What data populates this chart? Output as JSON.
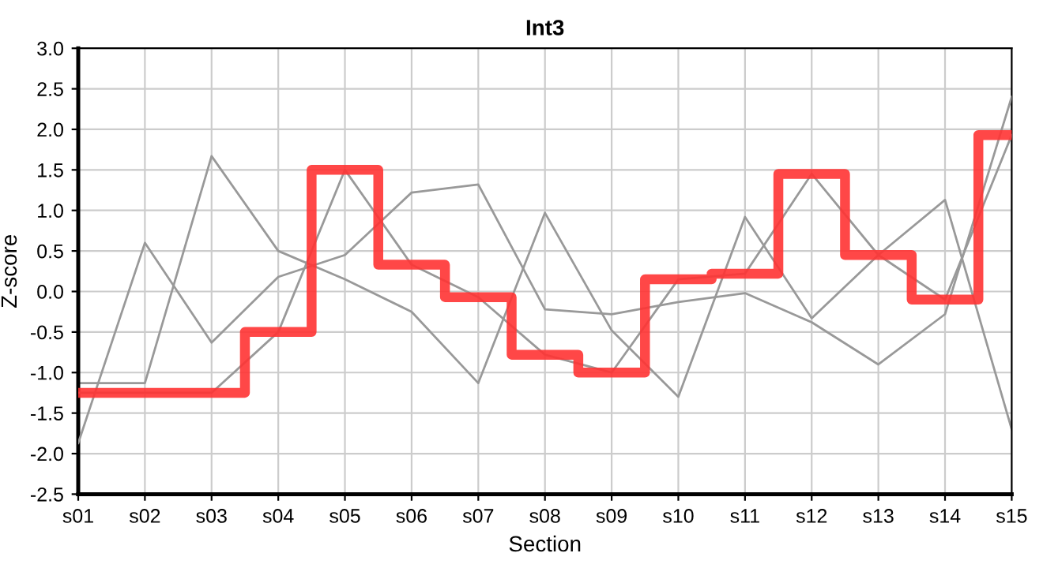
{
  "chart_data": {
    "type": "line",
    "title": "Int3",
    "xlabel": "Section",
    "ylabel": "Z-score",
    "categories": [
      "s01",
      "s02",
      "s03",
      "s04",
      "s05",
      "s06",
      "s07",
      "s08",
      "s09",
      "s10",
      "s11",
      "s12",
      "s13",
      "s14",
      "s15"
    ],
    "series": [
      {
        "color": "#999999",
        "values": [
          -1.13,
          -1.13,
          1.67,
          0.5,
          0.15,
          -0.25,
          -1.13,
          0.97,
          -0.48,
          -1.3,
          0.92,
          -0.33,
          0.45,
          1.13,
          -1.7
        ]
      },
      {
        "color": "#999999",
        "values": [
          -1.87,
          0.6,
          -0.63,
          0.18,
          0.45,
          1.22,
          1.32,
          -0.22,
          -0.28,
          -0.13,
          -0.02,
          -0.38,
          -0.9,
          -0.28,
          2.4
        ]
      },
      {
        "color": "#999999",
        "values": [
          -1.25,
          -1.25,
          -1.25,
          -0.5,
          1.5,
          0.33,
          -0.07,
          -0.78,
          -1.0,
          0.15,
          0.22,
          1.45,
          0.45,
          -0.1,
          1.93
        ]
      },
      {
        "type": "step",
        "color": "#ff3333",
        "values": [
          -1.25,
          -1.25,
          -1.25,
          -0.5,
          1.5,
          0.33,
          -0.07,
          -0.78,
          -1.0,
          0.15,
          0.22,
          1.45,
          0.45,
          -0.1,
          1.93
        ]
      }
    ],
    "ylim": [
      -2.5,
      3.0
    ],
    "yticks": [
      -2.5,
      {
        "value": -2,
        "label": "-2.0"
      },
      -1.5,
      {
        "value": -1,
        "label": "-1.0"
      },
      -0.5,
      {
        "value": 0,
        "label": "0.0"
      },
      0.5,
      {
        "value": 1,
        "label": "1.0"
      },
      1.5,
      {
        "value": 2,
        "label": "2.0"
      },
      2.5,
      {
        "value": 3,
        "label": "3.0"
      }
    ],
    "grid": true
  }
}
